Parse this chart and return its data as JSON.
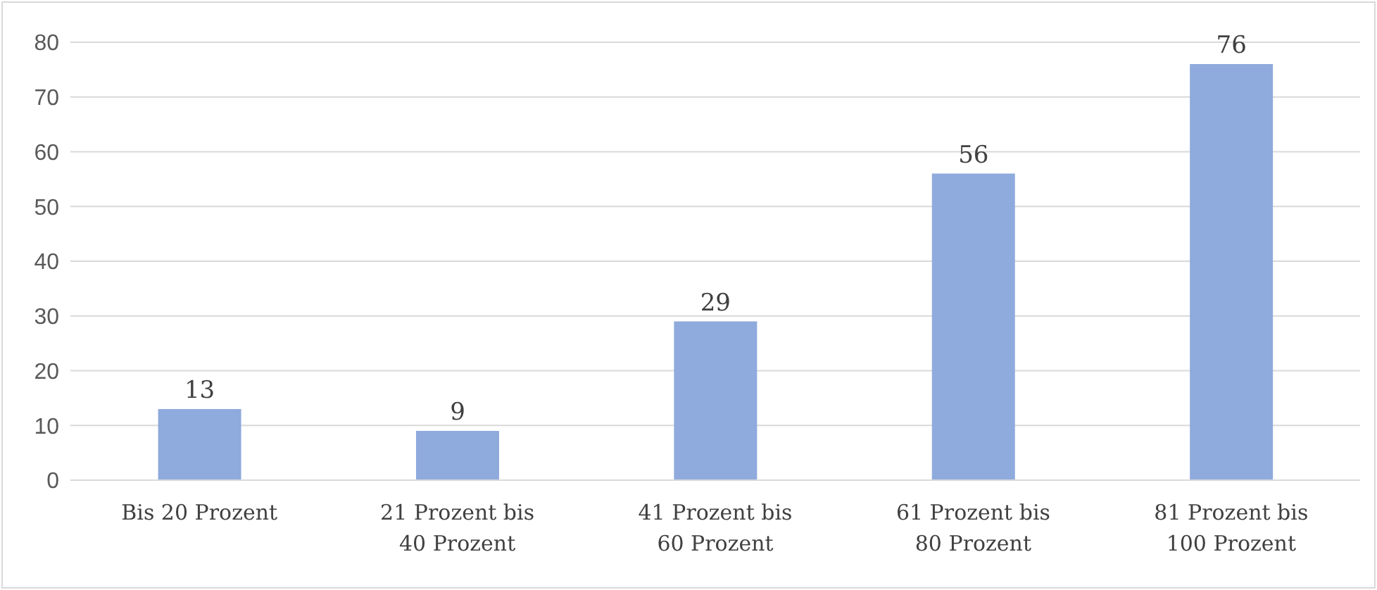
{
  "chart_data": {
    "type": "bar",
    "categories": [
      "Bis 20 Prozent",
      "21 Prozent bis 40 Prozent",
      "41 Prozent bis 60 Prozent",
      "61 Prozent bis 80 Prozent",
      "81 Prozent bis 100 Prozent"
    ],
    "values": [
      13,
      9,
      29,
      56,
      76
    ],
    "color": "#8faadc",
    "ylim": [
      0,
      80
    ],
    "yticks": [
      0,
      10,
      20,
      30,
      40,
      50,
      60,
      70,
      80
    ],
    "grid": "y",
    "data_labels": true
  }
}
